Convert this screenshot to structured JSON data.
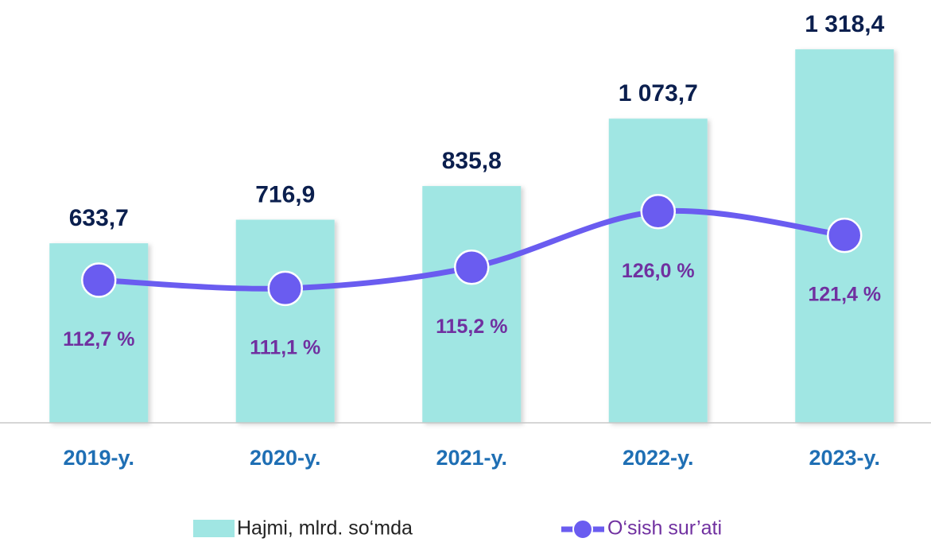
{
  "chart_data": {
    "type": "bar",
    "categories": [
      "2019-y.",
      "2020-y.",
      "2021-y.",
      "2022-y.",
      "2023-y."
    ],
    "series": [
      {
        "name": "Hajmi, mlrd. so‘mda",
        "color": "#a0e6e3",
        "type": "bar",
        "values": [
          633.7,
          716.9,
          835.8,
          1073.7,
          1318.4
        ],
        "value_labels": [
          "633,7",
          "716,9",
          "835,8",
          "1 073,7",
          "1 318,4"
        ]
      },
      {
        "name": "O‘sish sur’ati",
        "color": "#6a5cf0",
        "type": "line",
        "axis": "y2",
        "values": [
          112.7,
          111.1,
          115.2,
          126.0,
          121.4
        ],
        "value_labels": [
          "112,7 %",
          "111,1 %",
          "115,2 %",
          "126,0 %",
          "121,4 %"
        ]
      }
    ],
    "ylim": [
      0,
      1400
    ],
    "y2lim": [
      85,
      162
    ],
    "grid": false,
    "legend": "bottom"
  }
}
